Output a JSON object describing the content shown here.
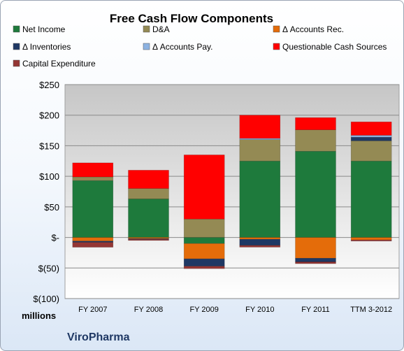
{
  "chart_data": {
    "type": "bar",
    "stacked": true,
    "title": "Free Cash Flow Components",
    "categories": [
      "FY 2007",
      "FY 2008",
      "FY 2009",
      "FY 2010",
      "FY 2011",
      "TTM 3-2012"
    ],
    "series": [
      {
        "name": "Net Income",
        "color": "#1e7a3c",
        "values": [
          93,
          63,
          -10,
          125,
          141,
          125
        ]
      },
      {
        "name": "D&A",
        "color": "#948a54",
        "values": [
          6,
          17,
          30,
          35,
          35,
          33
        ]
      },
      {
        "name": "Δ Accounts Rec.",
        "color": "#e46c0a",
        "values": [
          -6,
          -2,
          -25,
          -3,
          -34,
          -4
        ]
      },
      {
        "name": "Δ Inventories",
        "color": "#1f3864",
        "values": [
          -2,
          -1,
          -12,
          -10,
          -6,
          6
        ]
      },
      {
        "name": "Δ Accounts Pay.",
        "color": "#8db3e2",
        "values": [
          0,
          0,
          0,
          2,
          0,
          3
        ]
      },
      {
        "name": "Questionable Cash Sources",
        "color": "#ff0000",
        "values": [
          23,
          30,
          105,
          38,
          20,
          22
        ]
      },
      {
        "name": "Capital Expenditure",
        "color": "#943634",
        "values": [
          -8,
          -2,
          -4,
          -3,
          -3,
          -2
        ]
      }
    ],
    "yticks": [
      "$250",
      "$200",
      "$150",
      "$100",
      "$50",
      "$-",
      "$(50)",
      "$(100)"
    ],
    "ylim": [
      -100,
      250
    ],
    "ylabel": "",
    "xlabel": "",
    "units": "millions",
    "legend_position": "top",
    "grid": true,
    "plot_background": "#c0c0c0"
  },
  "footer": {
    "brand": "ViroPharma"
  }
}
